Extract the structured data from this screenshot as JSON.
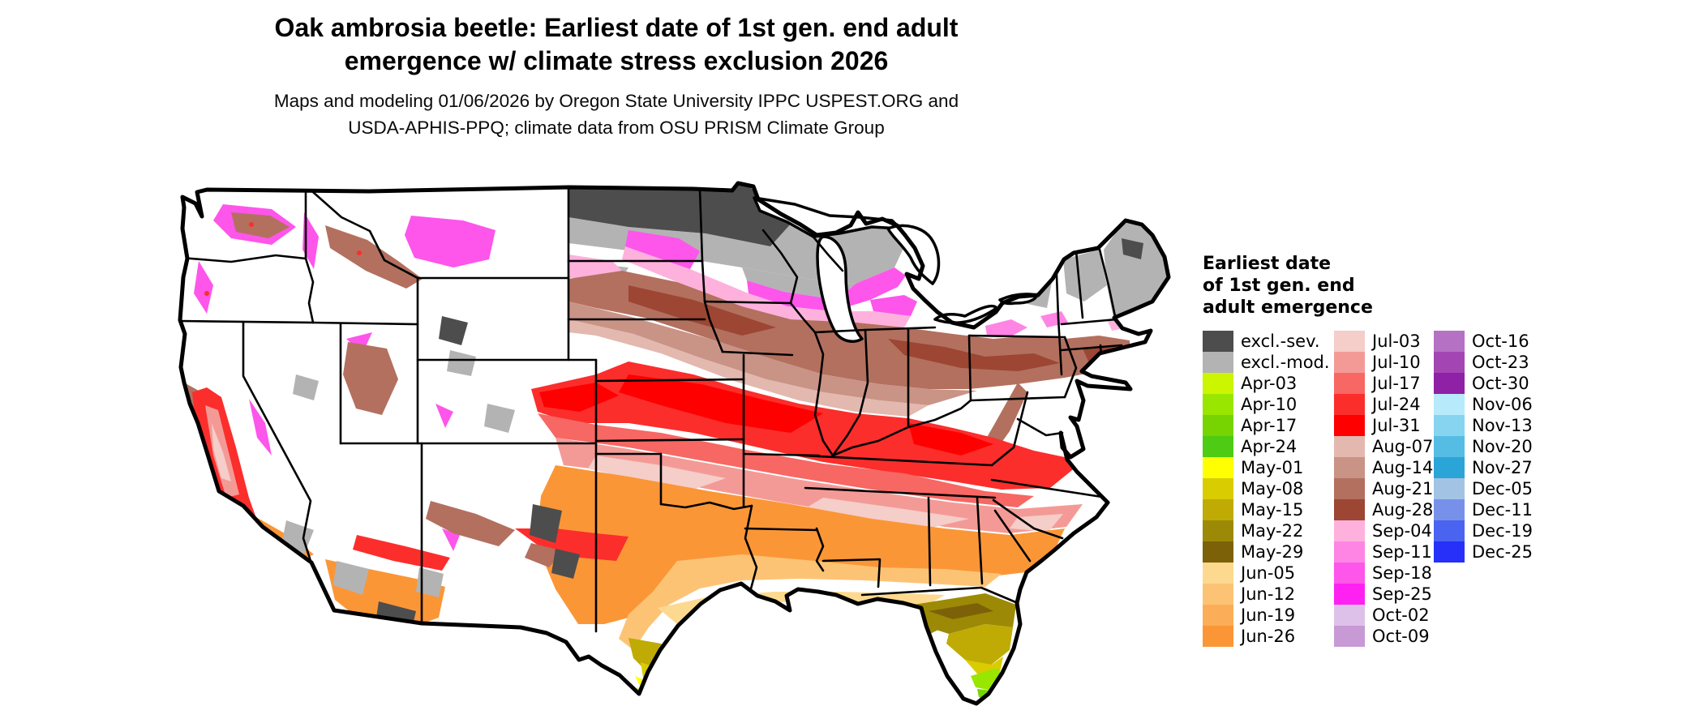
{
  "header": {
    "title_line1": "Oak ambrosia beetle: Earliest date of 1st gen. end adult",
    "title_line2": "emergence w/ climate stress exclusion 2026",
    "subtitle_line1": "Maps and modeling 01/06/2026 by Oregon State University IPPC USPEST.ORG and",
    "subtitle_line2": "USDA-APHIS-PPQ; climate data from OSU PRISM Climate Group"
  },
  "map": {
    "region_shown": "Contiguous United States",
    "land_color": "#ffffff",
    "border_color": "#000000",
    "water_color": "#ffffff"
  },
  "legend": {
    "title": "Earliest date\nof 1st gen. end\nadult emergence",
    "columns": [
      {
        "entries": [
          {
            "label": "excl.-sev.",
            "color": "#4d4d4d"
          },
          {
            "label": "excl.-mod.",
            "color": "#b3b3b3"
          },
          {
            "label": "Apr-03",
            "color": "#ccf500"
          },
          {
            "label": "Apr-10",
            "color": "#99e600"
          },
          {
            "label": "Apr-17",
            "color": "#77d400"
          },
          {
            "label": "Apr-24",
            "color": "#4dcc13"
          },
          {
            "label": "May-01",
            "color": "#ffff00"
          },
          {
            "label": "May-08",
            "color": "#d9cc00"
          },
          {
            "label": "May-15",
            "color": "#bfab04"
          },
          {
            "label": "May-22",
            "color": "#9c8a06"
          },
          {
            "label": "May-29",
            "color": "#7d6108"
          },
          {
            "label": "Jun-05",
            "color": "#fdd990"
          },
          {
            "label": "Jun-12",
            "color": "#fdc375"
          },
          {
            "label": "Jun-19",
            "color": "#fcad58"
          },
          {
            "label": "Jun-26",
            "color": "#fb9637"
          }
        ]
      },
      {
        "entries": [
          {
            "label": "Jul-03",
            "color": "#f5cdc9"
          },
          {
            "label": "Jul-10",
            "color": "#f49a96"
          },
          {
            "label": "Jul-17",
            "color": "#f76763"
          },
          {
            "label": "Jul-24",
            "color": "#fb2e2c"
          },
          {
            "label": "Jul-31",
            "color": "#fe0000"
          },
          {
            "label": "Aug-07",
            "color": "#e3b8ae"
          },
          {
            "label": "Aug-14",
            "color": "#c99386"
          },
          {
            "label": "Aug-21",
            "color": "#b3705f"
          },
          {
            "label": "Aug-28",
            "color": "#9c4633"
          },
          {
            "label": "Sep-04",
            "color": "#feb1dc"
          },
          {
            "label": "Sep-11",
            "color": "#fe85e4"
          },
          {
            "label": "Sep-18",
            "color": "#fe55eb"
          },
          {
            "label": "Sep-25",
            "color": "#fe21f2"
          },
          {
            "label": "Oct-02",
            "color": "#ddc1e8"
          },
          {
            "label": "Oct-09",
            "color": "#c799d5"
          }
        ]
      },
      {
        "entries": [
          {
            "label": "Oct-16",
            "color": "#b571c4"
          },
          {
            "label": "Oct-23",
            "color": "#a346b4"
          },
          {
            "label": "Oct-30",
            "color": "#8e21a6"
          },
          {
            "label": "Nov-06",
            "color": "#b7eafb"
          },
          {
            "label": "Nov-13",
            "color": "#87d4f0"
          },
          {
            "label": "Nov-20",
            "color": "#55bde4"
          },
          {
            "label": "Nov-27",
            "color": "#2ba5d8"
          },
          {
            "label": "Dec-05",
            "color": "#a3c3e4"
          },
          {
            "label": "Dec-11",
            "color": "#7791ea"
          },
          {
            "label": "Dec-19",
            "color": "#4b63f1"
          },
          {
            "label": "Dec-25",
            "color": "#2630f8"
          }
        ]
      }
    ]
  }
}
